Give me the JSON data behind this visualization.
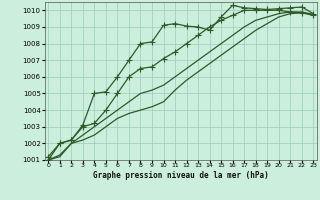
{
  "title": "Graphe pression niveau de la mer (hPa)",
  "bg_color": "#cceedd",
  "grid_color": "#99ccbb",
  "line_color": "#2d5a27",
  "xlim": [
    -0.3,
    23.3
  ],
  "ylim": [
    1001,
    1010.5
  ],
  "xticks": [
    0,
    1,
    2,
    3,
    4,
    5,
    6,
    7,
    8,
    9,
    10,
    11,
    12,
    13,
    14,
    15,
    16,
    17,
    18,
    19,
    20,
    21,
    22,
    23
  ],
  "yticks": [
    1001,
    1002,
    1003,
    1004,
    1005,
    1006,
    1007,
    1008,
    1009,
    1010
  ],
  "series": [
    {
      "y": [
        1001.2,
        1002.0,
        1002.2,
        1003.1,
        1005.0,
        1005.1,
        1006.0,
        1007.0,
        1008.0,
        1008.1,
        1009.1,
        1009.2,
        1009.05,
        1009.0,
        1008.8,
        1009.6,
        1010.3,
        1010.15,
        1010.1,
        1010.05,
        1010.1,
        1010.15,
        1010.2,
        1009.8
      ],
      "marker": "+",
      "ms": 4.0,
      "lw": 0.9,
      "zorder": 4
    },
    {
      "y": [
        1001.0,
        1001.2,
        1002.0,
        1002.2,
        1002.5,
        1003.0,
        1003.5,
        1003.8,
        1004.0,
        1004.2,
        1004.5,
        1005.2,
        1005.8,
        1006.3,
        1006.8,
        1007.3,
        1007.8,
        1008.3,
        1008.8,
        1009.2,
        1009.6,
        1009.8,
        1009.85,
        1009.75
      ],
      "marker": null,
      "ms": 0,
      "lw": 0.9,
      "zorder": 2
    },
    {
      "y": [
        1001.0,
        1001.3,
        1002.0,
        1002.5,
        1003.0,
        1003.5,
        1004.0,
        1004.5,
        1005.0,
        1005.2,
        1005.5,
        1006.0,
        1006.5,
        1007.0,
        1007.5,
        1008.0,
        1008.5,
        1009.0,
        1009.4,
        1009.6,
        1009.8,
        1009.9,
        1009.9,
        1009.75
      ],
      "marker": null,
      "ms": 0,
      "lw": 0.9,
      "zorder": 2
    },
    {
      "y": [
        1001.0,
        1002.0,
        1002.2,
        1003.0,
        1003.2,
        1004.0,
        1005.0,
        1006.0,
        1006.5,
        1006.6,
        1007.1,
        1007.5,
        1008.0,
        1008.5,
        1009.0,
        1009.4,
        1009.7,
        1010.0,
        1010.0,
        1010.0,
        1010.0,
        1009.9,
        1009.85,
        1009.7
      ],
      "marker": "+",
      "ms": 4.0,
      "lw": 0.9,
      "zorder": 3
    }
  ]
}
